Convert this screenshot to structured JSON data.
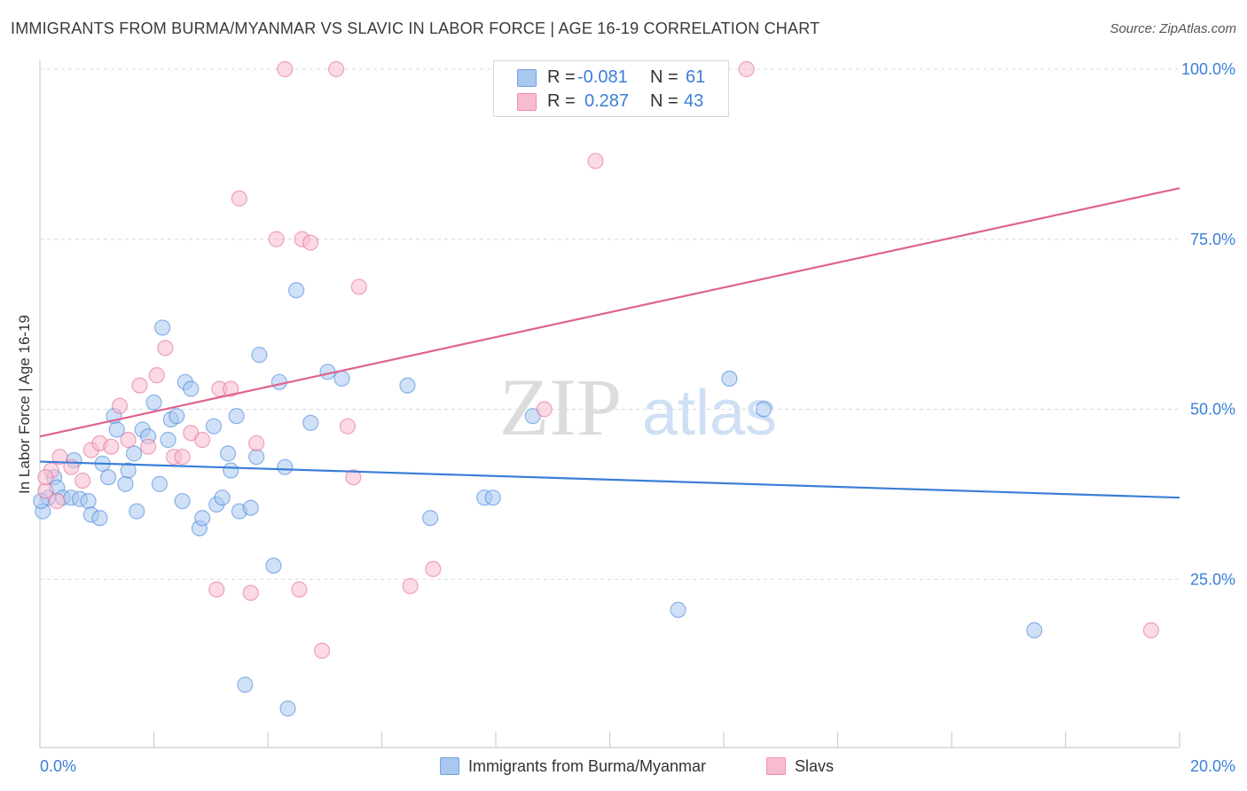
{
  "title": "IMMIGRANTS FROM BURMA/MYANMAR VS SLAVIC IN LABOR FORCE | AGE 16-19 CORRELATION CHART",
  "source": "Source: ZipAtlas.com",
  "watermark": {
    "zip": "ZIP",
    "atlas": "atlas"
  },
  "stats": [
    {
      "r_label": "R =",
      "r_value": "-0.081",
      "n_label": "N =",
      "n_value": "61",
      "color": "#a9c8f0",
      "stroke": "#6fa0e0"
    },
    {
      "r_label": "R =",
      "r_value": "0.287",
      "n_label": "N =",
      "n_value": "43",
      "color": "#f7bcd0",
      "stroke": "#ee8fb0"
    }
  ],
  "legend": [
    {
      "label": "Immigrants from Burma/Myanmar",
      "color": "#a9c8f0",
      "stroke": "#6fa0e0"
    },
    {
      "label": "Slavs",
      "color": "#f7bcd0",
      "stroke": "#ee8fb0"
    }
  ],
  "chart_data": {
    "type": "scatter",
    "title": "IMMIGRANTS FROM BURMA/MYANMAR VS SLAVIC IN LABOR FORCE | AGE 16-19 CORRELATION CHART",
    "xlabel": "",
    "ylabel": "In Labor Force | Age 16-19",
    "xlim": [
      0,
      20
    ],
    "ylim": [
      0,
      102
    ],
    "x_tick_labels": [
      "0.0%",
      "20.0%"
    ],
    "y_ticks": [
      25,
      50,
      75,
      100
    ],
    "y_tick_labels": [
      "25.0%",
      "50.0%",
      "75.0%",
      "100.0%"
    ],
    "grid": true,
    "legend_position": "bottom",
    "series": [
      {
        "name": "Immigrants from Burma/Myanmar",
        "color": "#3a7ed8",
        "fill": "#a9c8f0",
        "trend": {
          "x": [
            0,
            20
          ],
          "y": [
            42.3,
            37.0
          ]
        },
        "points": [
          [
            0.05,
            35.0
          ],
          [
            0.15,
            37.0
          ],
          [
            0.25,
            40.0
          ],
          [
            0.3,
            38.5
          ],
          [
            0.4,
            37.0
          ],
          [
            0.6,
            42.5
          ],
          [
            0.55,
            37.0
          ],
          [
            0.7,
            36.8
          ],
          [
            0.85,
            36.5
          ],
          [
            0.9,
            34.5
          ],
          [
            1.05,
            34.0
          ],
          [
            1.1,
            42.0
          ],
          [
            1.2,
            40.0
          ],
          [
            1.3,
            49.0
          ],
          [
            1.35,
            47.0
          ],
          [
            1.5,
            39.0
          ],
          [
            1.55,
            41.0
          ],
          [
            1.65,
            43.5
          ],
          [
            1.7,
            35.0
          ],
          [
            1.8,
            47.0
          ],
          [
            1.9,
            46.0
          ],
          [
            2.0,
            51.0
          ],
          [
            2.1,
            39.0
          ],
          [
            2.15,
            62.0
          ],
          [
            2.25,
            45.5
          ],
          [
            2.3,
            48.5
          ],
          [
            2.4,
            49.0
          ],
          [
            2.5,
            36.5
          ],
          [
            2.55,
            54.0
          ],
          [
            2.65,
            53.0
          ],
          [
            2.8,
            32.5
          ],
          [
            2.85,
            34.0
          ],
          [
            3.05,
            47.5
          ],
          [
            3.1,
            36.0
          ],
          [
            3.2,
            37.0
          ],
          [
            3.3,
            43.5
          ],
          [
            3.35,
            41.0
          ],
          [
            3.45,
            49.0
          ],
          [
            3.5,
            35.0
          ],
          [
            3.7,
            35.5
          ],
          [
            3.8,
            43.0
          ],
          [
            3.85,
            58.0
          ],
          [
            3.6,
            9.5
          ],
          [
            4.1,
            27.0
          ],
          [
            4.2,
            54.0
          ],
          [
            4.3,
            41.5
          ],
          [
            4.35,
            6.0
          ],
          [
            4.5,
            67.5
          ],
          [
            4.75,
            48.0
          ],
          [
            5.05,
            55.5
          ],
          [
            5.3,
            54.5
          ],
          [
            6.45,
            53.5
          ],
          [
            6.85,
            34.0
          ],
          [
            7.8,
            37.0
          ],
          [
            7.95,
            37.0
          ],
          [
            8.65,
            49.0
          ],
          [
            11.2,
            20.5
          ],
          [
            12.1,
            54.5
          ],
          [
            12.7,
            50.0
          ],
          [
            17.45,
            17.5
          ],
          [
            0.02,
            36.5
          ]
        ]
      },
      {
        "name": "Slavs",
        "color": "#e0628e",
        "fill": "#f7bcd0",
        "trend": {
          "x": [
            0,
            20
          ],
          "y": [
            46.0,
            82.5
          ]
        },
        "points": [
          [
            0.1,
            38.0
          ],
          [
            0.2,
            41.0
          ],
          [
            0.35,
            43.0
          ],
          [
            0.55,
            41.5
          ],
          [
            0.75,
            39.5
          ],
          [
            0.9,
            44.0
          ],
          [
            1.05,
            45.0
          ],
          [
            1.25,
            44.5
          ],
          [
            1.4,
            50.5
          ],
          [
            1.55,
            45.5
          ],
          [
            1.75,
            53.5
          ],
          [
            1.9,
            44.5
          ],
          [
            2.05,
            55.0
          ],
          [
            2.2,
            59.0
          ],
          [
            2.35,
            43.0
          ],
          [
            2.5,
            43.0
          ],
          [
            2.65,
            46.5
          ],
          [
            2.85,
            45.5
          ],
          [
            3.1,
            23.5
          ],
          [
            3.15,
            53.0
          ],
          [
            3.35,
            53.0
          ],
          [
            3.5,
            81.0
          ],
          [
            3.7,
            23.0
          ],
          [
            3.8,
            45.0
          ],
          [
            4.15,
            75.0
          ],
          [
            4.3,
            100.0
          ],
          [
            4.55,
            23.5
          ],
          [
            4.6,
            75.0
          ],
          [
            4.75,
            74.5
          ],
          [
            4.95,
            14.5
          ],
          [
            5.2,
            100.0
          ],
          [
            5.4,
            47.5
          ],
          [
            5.5,
            40.0
          ],
          [
            5.6,
            68.0
          ],
          [
            6.5,
            24.0
          ],
          [
            6.9,
            26.5
          ],
          [
            8.85,
            50.0
          ],
          [
            9.75,
            86.5
          ],
          [
            10.5,
            100.0
          ],
          [
            12.4,
            100.0
          ],
          [
            19.5,
            17.5
          ],
          [
            0.1,
            40.0
          ],
          [
            0.3,
            36.5
          ]
        ]
      }
    ]
  }
}
